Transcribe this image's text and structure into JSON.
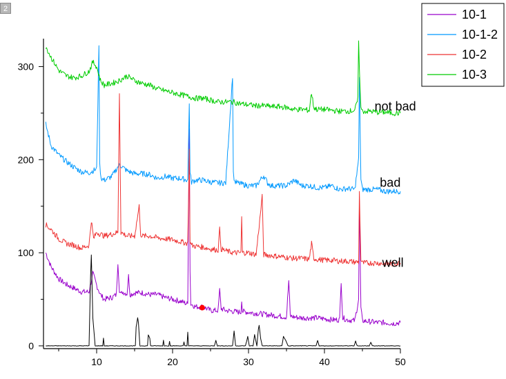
{
  "layer_badge": "2",
  "chart_data": {
    "type": "line",
    "title": "",
    "xlabel": "",
    "ylabel": "",
    "xlim": [
      3,
      50
    ],
    "ylim": [
      -3,
      330
    ],
    "xticks": [
      10,
      20,
      30,
      40,
      50
    ],
    "yticks": [
      0,
      100,
      200,
      300
    ],
    "grid": false,
    "legend_position": "top-right",
    "series": [
      {
        "name": "10-1",
        "color": "#9900cc",
        "x": [
          3.3,
          4,
          5,
          6,
          7,
          8,
          9,
          9.5,
          10,
          10.5,
          11,
          12,
          12.6,
          12.8,
          13,
          13.2,
          13.4,
          14,
          14.2,
          14.4,
          15,
          16,
          17,
          18,
          19,
          20,
          21,
          22,
          22.2,
          22.3,
          22.4,
          22.6,
          23,
          24,
          25,
          26,
          26.2,
          26.4,
          27,
          28,
          29,
          29.1,
          29.2,
          30,
          31,
          32,
          33,
          34,
          35,
          35.3,
          35.5,
          36,
          37,
          38,
          39,
          40,
          41,
          42,
          42.2,
          42.4,
          43,
          44,
          44.5,
          44.6,
          44.8,
          45,
          46,
          47,
          48,
          49,
          50
        ],
        "y": [
          100,
          85,
          72,
          66,
          62,
          58,
          58,
          78,
          65,
          55,
          50,
          52,
          55,
          90,
          60,
          55,
          58,
          56,
          75,
          55,
          57,
          57,
          55,
          55,
          52,
          50,
          48,
          45,
          235,
          80,
          45,
          44,
          42,
          42,
          38,
          38,
          60,
          40,
          38,
          37,
          36,
          50,
          37,
          36,
          35,
          34,
          33,
          32,
          31,
          70,
          32,
          31,
          30,
          30,
          30,
          29,
          28,
          28,
          70,
          30,
          28,
          27,
          50,
          155,
          40,
          27,
          26,
          25,
          25,
          24,
          25
        ]
      },
      {
        "name": "10-1-2",
        "color": "#0099ff",
        "x": [
          3.3,
          4,
          5,
          6,
          7,
          8,
          9,
          10,
          10.3,
          10.4,
          10.6,
          11,
          12,
          13,
          14,
          15,
          16,
          17,
          18,
          19,
          20,
          21,
          22,
          22.2,
          22.3,
          22.5,
          23,
          24,
          25,
          26,
          27,
          27.9,
          28,
          28.2,
          29,
          30,
          31,
          32,
          32.5,
          33,
          34,
          35,
          36,
          37,
          38,
          39,
          40,
          41,
          42,
          43,
          44,
          44.5,
          44.6,
          44.8,
          45,
          46,
          47,
          48,
          49,
          50
        ],
        "y": [
          238,
          215,
          205,
          198,
          192,
          187,
          186,
          190,
          325,
          195,
          180,
          178,
          182,
          195,
          188,
          185,
          185,
          184,
          180,
          182,
          180,
          180,
          178,
          262,
          185,
          176,
          178,
          178,
          176,
          175,
          175,
          290,
          185,
          176,
          174,
          172,
          172,
          183,
          175,
          172,
          172,
          172,
          178,
          172,
          172,
          170,
          170,
          172,
          168,
          169,
          168,
          200,
          290,
          178,
          168,
          168,
          168,
          166,
          166,
          166
        ]
      },
      {
        "name": "10-2",
        "color": "#ee3333",
        "x": [
          3.3,
          4,
          5,
          6,
          7,
          8,
          9,
          9.3,
          9.6,
          10,
          11,
          12,
          12.8,
          13,
          13.2,
          14,
          15,
          15.6,
          15.8,
          16,
          17,
          18,
          19,
          20,
          21,
          22,
          22.2,
          22.3,
          22.5,
          23,
          24,
          25,
          26,
          26.2,
          26.4,
          27,
          28,
          29,
          29.1,
          29.2,
          30,
          31,
          31.8,
          32,
          33,
          34,
          35,
          36,
          37,
          38,
          38.3,
          38.6,
          39,
          40,
          41,
          42,
          43,
          44,
          44.5,
          44.6,
          44.8,
          45,
          46,
          47,
          48,
          49,
          50
        ],
        "y": [
          130,
          125,
          115,
          110,
          108,
          105,
          108,
          135,
          115,
          122,
          118,
          120,
          122,
          272,
          122,
          118,
          118,
          150,
          120,
          118,
          118,
          116,
          115,
          114,
          112,
          110,
          210,
          112,
          108,
          107,
          106,
          104,
          103,
          125,
          104,
          102,
          100,
          100,
          138,
          100,
          100,
          98,
          160,
          98,
          97,
          96,
          95,
          94,
          94,
          93,
          110,
          94,
          93,
          92,
          92,
          91,
          91,
          90,
          90,
          165,
          92,
          89,
          89,
          89,
          88,
          88,
          89
        ]
      },
      {
        "name": "10-3",
        "color": "#00cc00",
        "x": [
          3.3,
          4,
          5,
          6,
          7,
          8,
          9,
          9.5,
          10,
          10.5,
          11,
          12,
          13,
          14,
          15,
          16,
          17,
          18,
          19,
          20,
          21,
          22,
          23,
          24,
          25,
          26,
          27,
          28,
          29,
          30,
          31,
          32,
          33,
          34,
          35,
          36,
          37,
          38,
          38.3,
          38.6,
          39,
          40,
          41,
          42,
          43,
          44,
          44.4,
          44.5,
          44.6,
          44.8,
          45,
          46,
          47,
          48,
          49,
          50
        ],
        "y": [
          322,
          310,
          296,
          290,
          288,
          290,
          295,
          305,
          300,
          285,
          280,
          282,
          285,
          290,
          285,
          282,
          280,
          276,
          274,
          272,
          270,
          268,
          266,
          266,
          264,
          262,
          262,
          262,
          260,
          259,
          258,
          258,
          257,
          257,
          256,
          254,
          254,
          253,
          272,
          256,
          254,
          254,
          253,
          252,
          252,
          253,
          265,
          325,
          300,
          255,
          252,
          252,
          251,
          251,
          250,
          250
        ]
      },
      {
        "name": "",
        "color": "#000000",
        "x": [
          3.3,
          8,
          9.0,
          9.2,
          9.3,
          9.5,
          9.8,
          10.8,
          10.9,
          11.0,
          15.1,
          15.2,
          15.4,
          15.5,
          15.7,
          16.7,
          16.8,
          17.0,
          17.1,
          18.7,
          18.8,
          18.9,
          19.5,
          19.6,
          19.7,
          21.4,
          21.5,
          21.6,
          21.9,
          22.0,
          22.1,
          25.5,
          25.7,
          25.9,
          27.9,
          28.1,
          28.3,
          29.6,
          29.9,
          30.1,
          30.6,
          30.8,
          31.1,
          31.3,
          31.4,
          31.6,
          31.8,
          34.4,
          34.6,
          34.9,
          35.2,
          38.9,
          39.1,
          39.3,
          43.9,
          44.1,
          44.3,
          45.9,
          46.1,
          46.3,
          50
        ],
        "y": [
          0,
          0,
          0,
          75,
          98,
          30,
          0,
          0,
          8,
          0,
          0,
          20,
          30,
          25,
          0,
          0,
          12,
          8,
          0,
          0,
          6,
          0,
          0,
          5,
          0,
          0,
          4,
          0,
          0,
          15,
          0,
          0,
          6,
          0,
          0,
          16,
          0,
          0,
          10,
          0,
          0,
          12,
          0,
          18,
          22,
          8,
          0,
          0,
          10,
          6,
          0,
          0,
          6,
          0,
          0,
          5,
          0,
          0,
          4,
          0,
          0
        ]
      }
    ],
    "annotations": [
      {
        "text": "not bad",
        "x": 46.6,
        "y": 253
      },
      {
        "text": "bad",
        "x": 47.3,
        "y": 171
      },
      {
        "text": "well",
        "x": 47.6,
        "y": 85
      }
    ],
    "marker": {
      "x": 23.9,
      "y": 41,
      "color": "#ff0000"
    }
  }
}
